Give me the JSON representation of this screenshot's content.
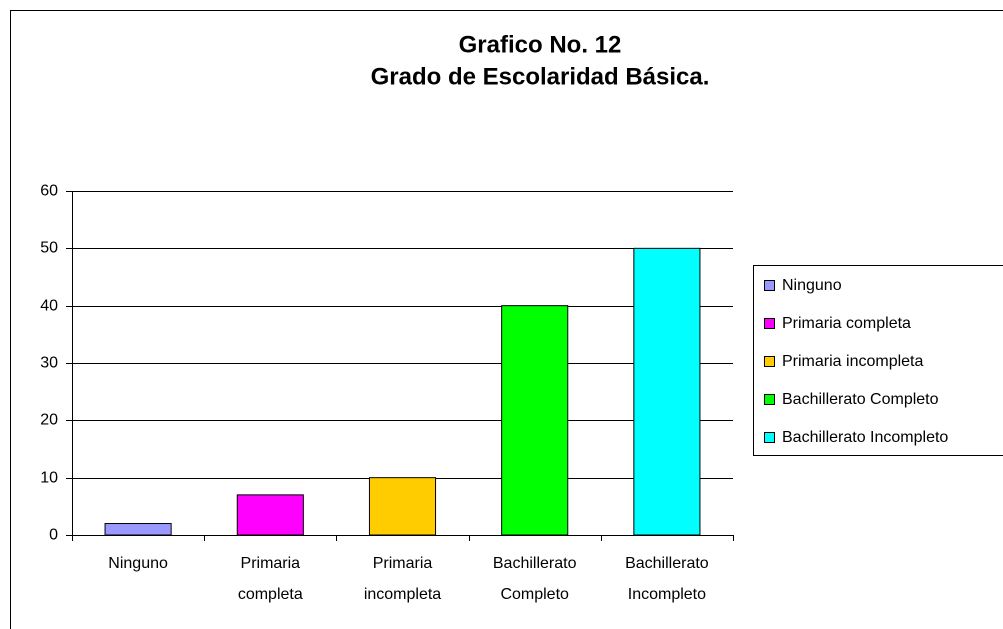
{
  "chart_data": {
    "type": "bar",
    "title": "Grafico No. 12",
    "subtitle": "Grado de Escolaridad Básica.",
    "categories": [
      "Ninguno",
      "Primaria completa",
      "Primaria incompleta",
      "Bachillerato Completo",
      "Bachillerato Incompleto"
    ],
    "values": [
      2,
      7,
      10,
      40,
      50
    ],
    "colors": [
      "#9999ff",
      "#ff00ff",
      "#ffcc00",
      "#00ff00",
      "#00ffff"
    ],
    "ylim": [
      0,
      60
    ],
    "yticks": [
      0,
      10,
      20,
      30,
      40,
      50,
      60
    ],
    "grid": true,
    "legend": "right"
  }
}
